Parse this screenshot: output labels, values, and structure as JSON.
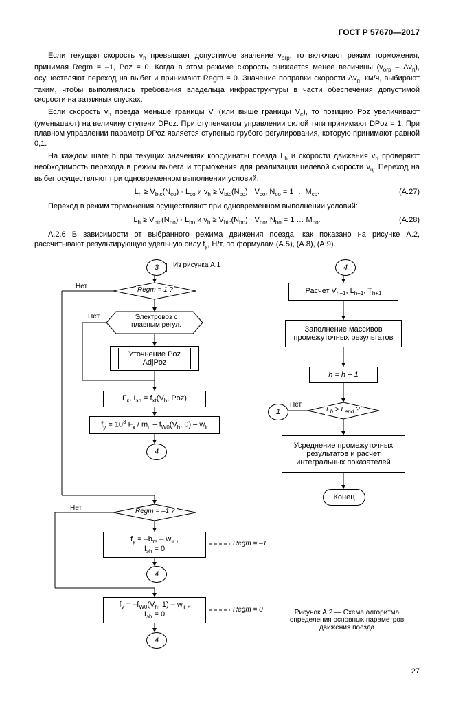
{
  "header": "ГОСТ Р 57670—2017",
  "para1": "Если текущая скорость v<sub>h</sub> превышает допустимое значение v<sub>огр</sub>, то включают режим торможения, принимая Regm = –1, Poz = 0. Когда в этом режиме скорость снижается менее величины (v<sub>огр</sub> – Δv<sub>п</sub>), осуществляют переход на выбег и принимают Regm = 0. Значение поправки скорости Δv<sub>п</sub>, км/ч, выбирают таким, чтобы выполнялись требования владельца инфраструктуры в части обеспечения допустимой скорости на затяжных спусках.",
  "para2": "Если скорость v<sub>h</sub> поезда меньше границы V<sub>t</sub> (или выше границы V<sub>c</sub>), то позицию Poz увеличивают (уменьшают) на величину ступени DPoz. При ступенчатом управлении силой тяги принимают DPoz = 1. При плавном управлении параметр DPoz является ступенью грубого регулирования, которую принимают равной 0,1.",
  "para3": "На каждом шаге h при текущих значениях координаты поезда L<sub>h</sub> и скорости движения v<sub>h</sub> проверяют необходимость перехода в режим выбега и торможения для реализации целевой скорости v<sub>ц</sub>. Переход на выбег осуществляют при одновременном выполнении условий:",
  "formula1": "L<sub>h</sub> ≥ V<sub>btc</sub>(N<sub>co</sub>) · L<sub>co</sub> и v<sub>h</sub> ≥ V<sub>btc</sub>(N<sub>co</sub>) · V<sub>co</sub>, N<sub>co</sub> = 1 … M<sub>co</sub>.",
  "formula1num": "(А.27)",
  "para4": "Переход в режим торможения осуществляют при одновременном выполнении условий:",
  "formula2": "L<sub>h</sub> ≥ V<sub>btc</sub>(N<sub>bo</sub>) · L<sub>bo</sub> и v<sub>h</sub> ≥ V<sub>btc</sub>(N<sub>bo</sub>) · V<sub>bo</sub>, N<sub>bo</sub> = 1 … M<sub>bo</sub>.",
  "formula2num": "(А.28)",
  "para5": "А.2.6 В зависимости от выбранного режима движения поезда, как показано на рисунке А.2, рассчитывают результирующую удельную силу f<sub>y</sub>, Н/т, по формулам (А.5), (А.8), (А.9).",
  "d": {
    "c3": "3",
    "c3label": "Из рисунка А.1",
    "regm1": "Regm = 1 ?",
    "elloc": "Электровоз с плавным регул.",
    "adjpoz1": "Уточнение Poz",
    "adjpoz2": "AdjPoz",
    "fkish": "F<sub>к</sub>, I<sub>эh</sub> = f<sub>xt</sub>(V<sub>h</sub>, Poz)",
    "fy1": "f<sub>y</sub> = 10<sup>3</sup> F<sub>к</sub> / m<sub>п</sub> – f<sub>W0</sub>(V<sub>h</sub>, 0) – w<sub>ir</sub>",
    "c4a": "4",
    "regmm1": "Regm = –1 ?",
    "fy2": "f<sub>y</sub> = –b<sub>τэ</sub> – w<sub>ir</sub> ,<br>I<sub>эh</sub> = 0",
    "regmm1eq": "Regm = –1",
    "c4b": "4",
    "fy3": "f<sub>y</sub> = –f<sub>W0</sub>(V<sub>h</sub>, 1) – w<sub>ir</sub> ,<br>I<sub>эh</sub> = 0",
    "regm0eq": "Regm = 0",
    "c4c": "4",
    "c4r": "4",
    "rcalc": "Расчет V<sub>h+1</sub>, L<sub>h+1</sub>, T<sub>h+1</sub>",
    "rfill": "Заполнение массивов промежуточных результатов",
    "rhp1": "h = h + 1",
    "c1": "1",
    "rlend": "L<sub>h</sub> > L<sub>end</sub> ?",
    "ravg": "Усреднение промежуточных результатов и расчет интегральных показателей",
    "rend": "Конец",
    "no": "Нет",
    "caption1": "Рисунок А.2 — Схема алгоритма",
    "caption2": "определения основных параметров",
    "caption3": "движения поезда"
  },
  "page": "27",
  "style": {
    "line": "#000",
    "dash": "4,3"
  }
}
